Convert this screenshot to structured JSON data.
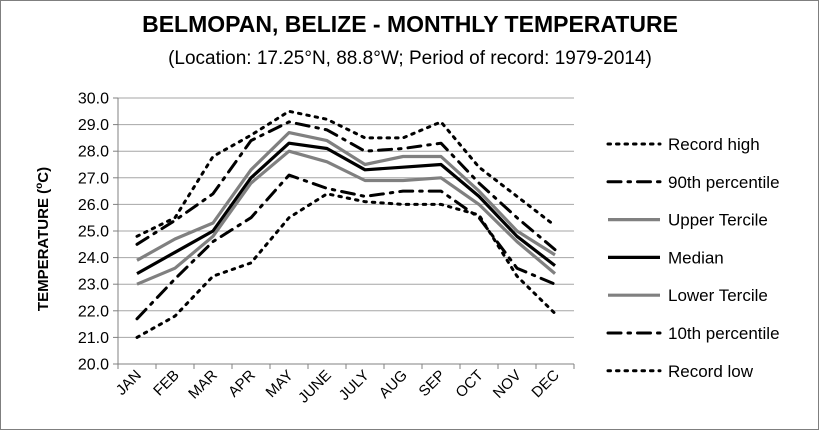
{
  "chart_data": {
    "type": "line",
    "title": "BELMOPAN, BELIZE - MONTHLY TEMPERATURE",
    "subtitle": "(Location: 17.25°N, 88.8°W; Period of record: 1979-2014)",
    "xlabel": "",
    "ylabel": "TEMPERATURE (",
    "ylabel_sup": "o",
    "ylabel_unit": "C)",
    "ylim": [
      20.0,
      30.0
    ],
    "ytick_step": 1.0,
    "ytick_labels": [
      "20.0",
      "21.0",
      "22.0",
      "23.0",
      "24.0",
      "25.0",
      "26.0",
      "27.0",
      "28.0",
      "29.0",
      "30.0"
    ],
    "grid": true,
    "legend_position": "right",
    "categories": [
      "JAN",
      "FEB",
      "MAR",
      "APR",
      "MAY",
      "JUNE",
      "JULY",
      "AUG",
      "SEP",
      "OCT",
      "NOV",
      "DEC"
    ],
    "series": [
      {
        "name": "Record high",
        "style": "dotted",
        "color": "#000000",
        "values": [
          24.8,
          25.5,
          27.8,
          28.6,
          29.5,
          29.2,
          28.5,
          28.5,
          29.1,
          27.4,
          26.3,
          25.2
        ]
      },
      {
        "name": "90th percentile",
        "style": "dashdot",
        "color": "#000000",
        "values": [
          24.5,
          25.4,
          26.4,
          28.4,
          29.1,
          28.8,
          28.0,
          28.1,
          28.3,
          26.8,
          25.5,
          24.3
        ]
      },
      {
        "name": "Upper Tercile",
        "style": "solid-gray",
        "color": "#808080",
        "values": [
          23.9,
          24.7,
          25.3,
          27.3,
          28.7,
          28.4,
          27.5,
          27.8,
          27.8,
          26.5,
          25.0,
          24.1
        ]
      },
      {
        "name": "Median",
        "style": "solid-black",
        "color": "#000000",
        "values": [
          23.4,
          24.2,
          25.0,
          27.0,
          28.3,
          28.1,
          27.3,
          27.4,
          27.5,
          26.3,
          24.8,
          23.7
        ]
      },
      {
        "name": "Lower Tercile",
        "style": "solid-gray",
        "color": "#808080",
        "values": [
          23.0,
          23.6,
          24.8,
          26.8,
          28.0,
          27.6,
          26.9,
          26.9,
          27.0,
          26.0,
          24.6,
          23.4
        ]
      },
      {
        "name": "10th percentile",
        "style": "dashdot",
        "color": "#000000",
        "values": [
          21.7,
          23.2,
          24.6,
          25.5,
          27.1,
          26.6,
          26.3,
          26.5,
          26.5,
          25.5,
          23.6,
          23.0
        ]
      },
      {
        "name": "Record low",
        "style": "dotted",
        "color": "#000000",
        "values": [
          21.0,
          21.8,
          23.3,
          23.8,
          25.5,
          26.4,
          26.1,
          26.0,
          26.0,
          25.6,
          23.3,
          21.9
        ]
      }
    ]
  }
}
